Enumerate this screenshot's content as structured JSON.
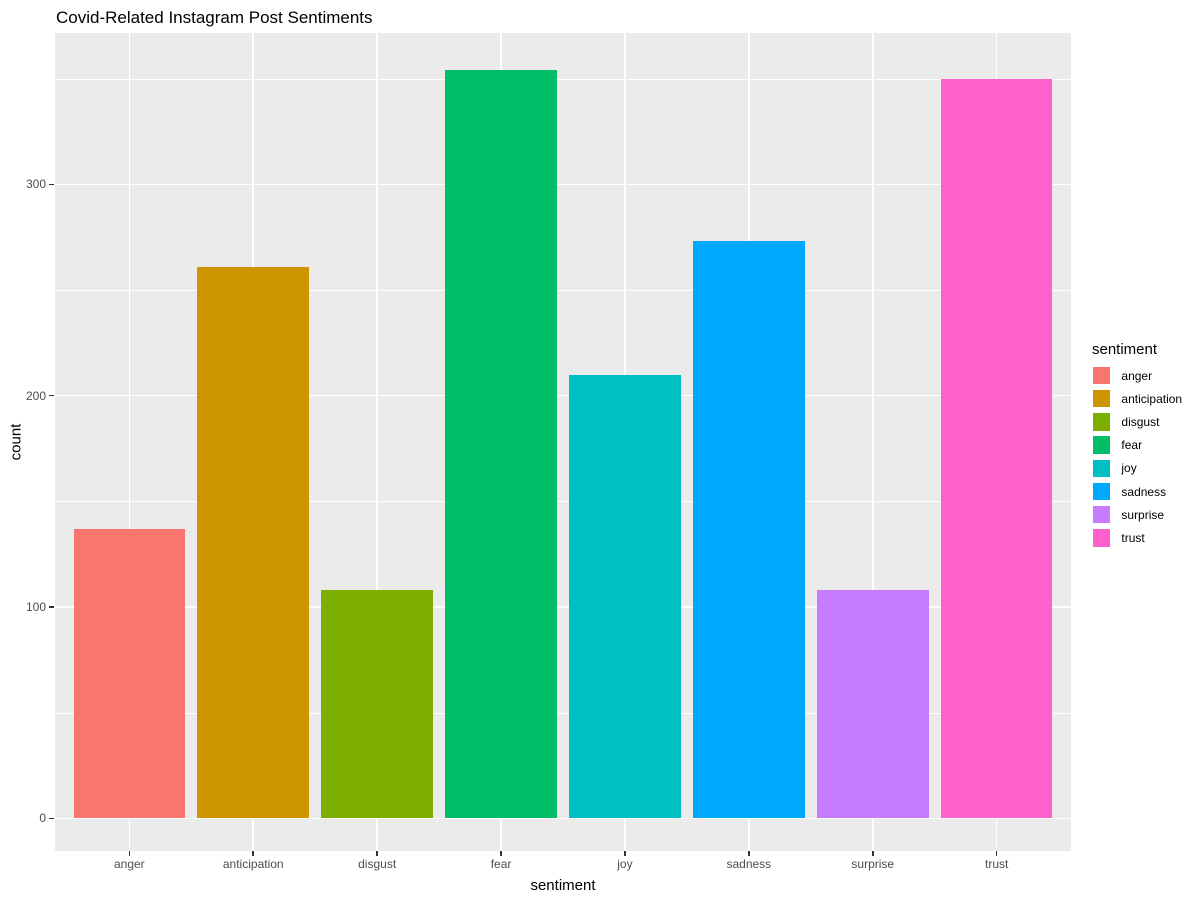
{
  "chart_data": {
    "type": "bar",
    "title": "Covid-Related Instagram Post Sentiments",
    "xlabel": "sentiment",
    "ylabel": "count",
    "categories": [
      "anger",
      "anticipation",
      "disgust",
      "fear",
      "joy",
      "sadness",
      "surprise",
      "trust"
    ],
    "values": [
      137,
      261,
      108,
      354,
      210,
      273,
      108,
      350
    ],
    "bar_colors": [
      "#F8766D",
      "#CD9600",
      "#7CAE00",
      "#00BE67",
      "#00BFC4",
      "#00A9FF",
      "#C77CFF",
      "#FF61CC"
    ],
    "yticks": [
      0,
      100,
      200,
      300
    ],
    "grid": {
      "show": true,
      "major_y": [
        0,
        100,
        200,
        300
      ],
      "minor_y": [
        50,
        150,
        250,
        350
      ]
    },
    "ylim": [
      -16,
      372
    ],
    "legend": {
      "title": "sentiment",
      "position": "right",
      "entries": [
        {
          "label": "anger",
          "color": "#F8766D"
        },
        {
          "label": "anticipation",
          "color": "#CD9600"
        },
        {
          "label": "disgust",
          "color": "#7CAE00"
        },
        {
          "label": "fear",
          "color": "#00BE67"
        },
        {
          "label": "joy",
          "color": "#00BFC4"
        },
        {
          "label": "sadness",
          "color": "#00A9FF"
        },
        {
          "label": "surprise",
          "color": "#C77CFF"
        },
        {
          "label": "trust",
          "color": "#FF61CC"
        }
      ]
    },
    "style": {
      "panel_bg": "#EBEBEB",
      "gridline_color": "#FFFFFF",
      "tick_mark_color": "#333333",
      "tick_label_color": "#4D4D4D",
      "title_color": "#000000"
    }
  }
}
